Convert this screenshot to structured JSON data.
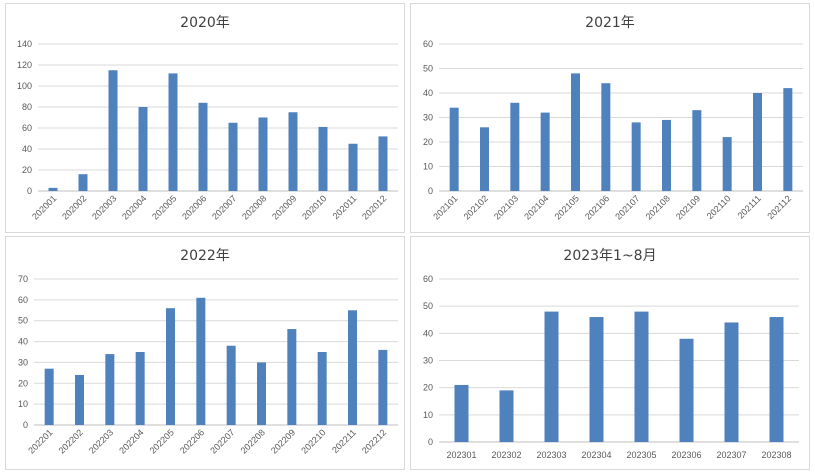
{
  "colors": {
    "bar": "#4f81bd",
    "grid": "#d9d9d9",
    "text": "#595959"
  },
  "chart_data": [
    {
      "type": "bar",
      "title": "2020年",
      "categories": [
        "202001",
        "202002",
        "202003",
        "202004",
        "202005",
        "202006",
        "202007",
        "202008",
        "202009",
        "202010",
        "202011",
        "202012"
      ],
      "values": [
        3,
        16,
        115,
        80,
        112,
        84,
        65,
        70,
        75,
        61,
        45,
        52
      ],
      "ylim": [
        0,
        140
      ],
      "yticks": [
        0,
        20,
        40,
        60,
        80,
        100,
        120,
        140
      ],
      "grid": true,
      "xlabel_rotation": "-45"
    },
    {
      "type": "bar",
      "title": "2021年",
      "categories": [
        "202101",
        "202102",
        "202103",
        "202104",
        "202105",
        "202106",
        "202107",
        "202108",
        "202109",
        "202110",
        "202111",
        "202112"
      ],
      "values": [
        34,
        26,
        36,
        32,
        48,
        44,
        28,
        29,
        33,
        22,
        40,
        42
      ],
      "ylim": [
        0,
        60
      ],
      "yticks": [
        0,
        10,
        20,
        30,
        40,
        50,
        60
      ],
      "grid": true,
      "xlabel_rotation": "-45"
    },
    {
      "type": "bar",
      "title": "2022年",
      "categories": [
        "202201",
        "202202",
        "202203",
        "202204",
        "202205",
        "202206",
        "202207",
        "202208",
        "202209",
        "202210",
        "202211",
        "202212"
      ],
      "values": [
        27,
        24,
        34,
        35,
        56,
        61,
        38,
        30,
        46,
        35,
        55,
        36
      ],
      "ylim": [
        0,
        70
      ],
      "yticks": [
        0,
        10,
        20,
        30,
        40,
        50,
        60,
        70
      ],
      "grid": true,
      "xlabel_rotation": "-45"
    },
    {
      "type": "bar",
      "title": "2023年1~8月",
      "categories": [
        "202301",
        "202302",
        "202303",
        "202304",
        "202305",
        "202306",
        "202307",
        "202308"
      ],
      "values": [
        21,
        19,
        48,
        46,
        48,
        38,
        44,
        46
      ],
      "ylim": [
        0,
        60
      ],
      "yticks": [
        0,
        10,
        20,
        30,
        40,
        50,
        60
      ],
      "grid": true,
      "xlabel_rotation": "0"
    }
  ]
}
